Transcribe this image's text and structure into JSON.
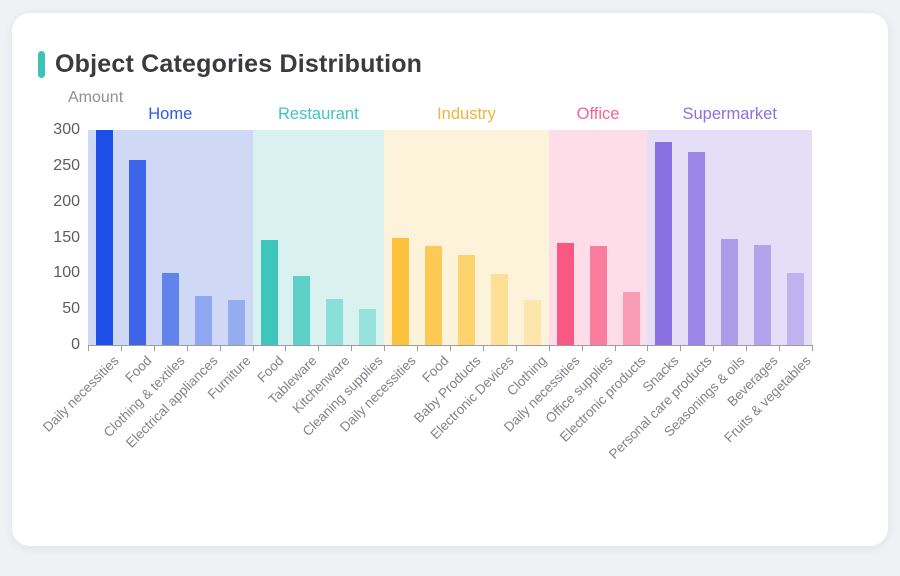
{
  "card": {
    "title": "Object Categories Distribution",
    "accent_color": "#3cc3b5"
  },
  "chart_data": {
    "type": "bar",
    "title": "Object Categories Distribution",
    "xlabel": "",
    "ylabel": "Amount",
    "ylim": [
      0,
      300
    ],
    "yticks": [
      0,
      50,
      100,
      150,
      200,
      250,
      300
    ],
    "grid": false,
    "legend_position": "none",
    "axis_color": "#9b9ba3",
    "groups": [
      {
        "name": "Home",
        "label_color": "#2d5be5",
        "band_color": "#cfd9f5",
        "bars": [
          {
            "label": "Daily necessities",
            "value": 300,
            "color": "#1d4fe8"
          },
          {
            "label": "Food",
            "value": 258,
            "color": "#3e64e9"
          },
          {
            "label": "Clothing & textiles",
            "value": 101,
            "color": "#6282ec"
          },
          {
            "label": "Electrical appliances",
            "value": 68,
            "color": "#8fa6f0"
          },
          {
            "label": "Furniture",
            "value": 63,
            "color": "#96acf0"
          }
        ]
      },
      {
        "name": "Restaurant",
        "label_color": "#3fc7bd",
        "band_color": "#d9f2f0",
        "bars": [
          {
            "label": "Food",
            "value": 147,
            "color": "#3ec6bd"
          },
          {
            "label": "Tableware",
            "value": 96,
            "color": "#5fd0c8"
          },
          {
            "label": "Kitchenware",
            "value": 64,
            "color": "#8adfd9"
          },
          {
            "label": "Cleaning supplies",
            "value": 50,
            "color": "#98e2dc"
          }
        ]
      },
      {
        "name": "Industry",
        "label_color": "#eeb53e",
        "band_color": "#fdf3da",
        "bars": [
          {
            "label": "Daily necessities",
            "value": 150,
            "color": "#fcc23c"
          },
          {
            "label": "Food",
            "value": 138,
            "color": "#fcca55"
          },
          {
            "label": "Baby Products",
            "value": 126,
            "color": "#fdd36e"
          },
          {
            "label": "Electronic Devices",
            "value": 99,
            "color": "#fddf95"
          },
          {
            "label": "Clothing",
            "value": 63,
            "color": "#fee5ab"
          }
        ]
      },
      {
        "name": "Office",
        "label_color": "#fa6390",
        "band_color": "#fedde9",
        "bars": [
          {
            "label": "Daily necessities",
            "value": 142,
            "color": "#f95883"
          },
          {
            "label": "Office supplies",
            "value": 138,
            "color": "#fa7d9d"
          },
          {
            "label": "Electronic products",
            "value": 74,
            "color": "#fb9cb5"
          }
        ]
      },
      {
        "name": "Supermarket",
        "label_color": "#8b72e0",
        "band_color": "#e4def7",
        "bars": [
          {
            "label": "Snacks",
            "value": 283,
            "color": "#8a70e2"
          },
          {
            "label": "Personal care products",
            "value": 270,
            "color": "#9c86e7"
          },
          {
            "label": "Seasonings & oils",
            "value": 148,
            "color": "#ac9cea"
          },
          {
            "label": "Beverages",
            "value": 140,
            "color": "#b2a3ec"
          },
          {
            "label": "Fruits & vegetables",
            "value": 100,
            "color": "#bfb3ef"
          }
        ]
      }
    ]
  }
}
